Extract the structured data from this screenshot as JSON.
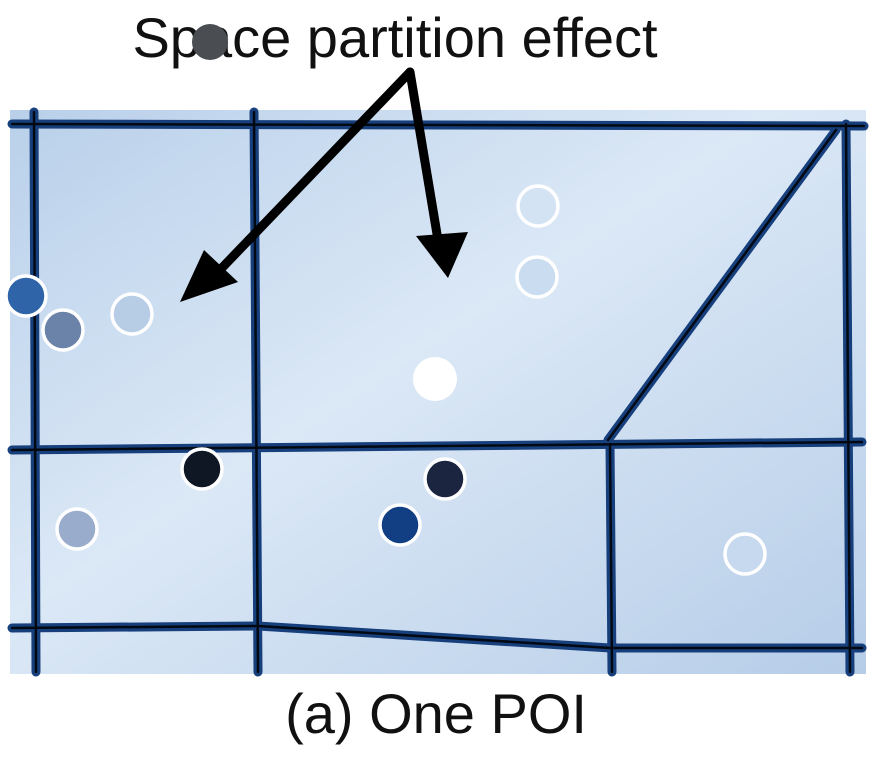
{
  "title": "Space partition effect",
  "caption": "(a) One POI",
  "colors": {
    "region_fill": "#c5daf0",
    "region_border": "#1b4a8e",
    "arrow": "#000000",
    "poi_white": "#ffffff"
  },
  "points": [
    {
      "id": "title-dot",
      "color": "#4a4d52",
      "ring": false
    },
    {
      "id": "pt-blue-left",
      "color": "#2f64a8",
      "ring": true
    },
    {
      "id": "pt-slate",
      "color": "#6b83a8",
      "ring": true
    },
    {
      "id": "pt-pale-left",
      "color": "#b7cde6",
      "ring": true
    },
    {
      "id": "pt-pale-top-right-1",
      "color": "#d4e3f3",
      "ring": true
    },
    {
      "id": "pt-pale-top-right-2",
      "color": "#c9dcf0",
      "ring": true
    },
    {
      "id": "pt-poi-white",
      "color": "#ffffff",
      "ring": false
    },
    {
      "id": "pt-black",
      "color": "#0f1624",
      "ring": true
    },
    {
      "id": "pt-navy",
      "color": "#1c2540",
      "ring": true
    },
    {
      "id": "pt-blue-bottom",
      "color": "#123f83",
      "ring": true
    },
    {
      "id": "pt-gray-bottom-left",
      "color": "#9aaccb",
      "ring": true
    },
    {
      "id": "pt-pale-bottom-right",
      "color": "#c7d9ee",
      "ring": true
    }
  ]
}
